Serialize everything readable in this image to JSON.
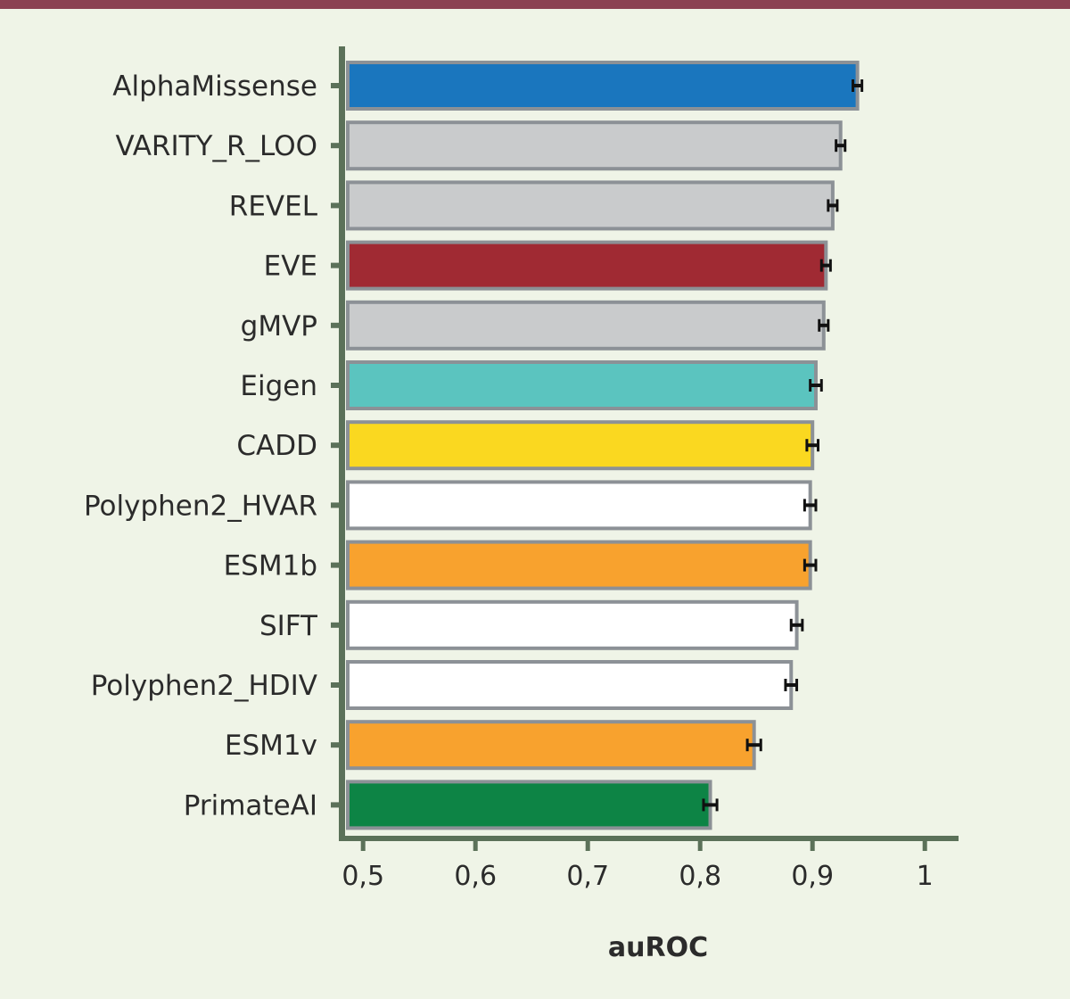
{
  "chart_data": {
    "type": "bar",
    "orientation": "horizontal",
    "title": "",
    "xlabel": "auROC",
    "ylabel": "",
    "xlim": [
      0.48,
      1.03
    ],
    "xticks": [
      0.5,
      0.6,
      0.7,
      0.8,
      0.9,
      1.0
    ],
    "xtick_labels": [
      "0,5",
      "0,6",
      "0,7",
      "0,8",
      "0,9",
      "1"
    ],
    "grid": false,
    "legend": "none",
    "categories": [
      "AlphaMissense",
      "VARITY_R_LOO",
      "REVEL",
      "EVE",
      "gMVP",
      "Eigen",
      "CADD",
      "Polyphen2_HVAR",
      "ESM1b",
      "SIFT",
      "Polyphen2_HDIV",
      "ESM1v",
      "PrimateAI"
    ],
    "values": [
      0.94,
      0.925,
      0.918,
      0.912,
      0.91,
      0.903,
      0.9,
      0.898,
      0.898,
      0.886,
      0.881,
      0.848,
      0.809
    ],
    "error": [
      0.004,
      0.004,
      0.004,
      0.004,
      0.004,
      0.005,
      0.005,
      0.005,
      0.005,
      0.005,
      0.005,
      0.006,
      0.006
    ],
    "colors": [
      "#1a76be",
      "#c9cbcc",
      "#c9cbcc",
      "#a02a33",
      "#c9cbcc",
      "#5bc4bf",
      "#fad820",
      "#ffffff",
      "#f8a22e",
      "#ffffff",
      "#ffffff",
      "#f8a22e",
      "#0d8445"
    ],
    "bar_outline_color": "#8c9196",
    "axis_color": "#5b7159",
    "top_band_color": "#8b4252"
  }
}
